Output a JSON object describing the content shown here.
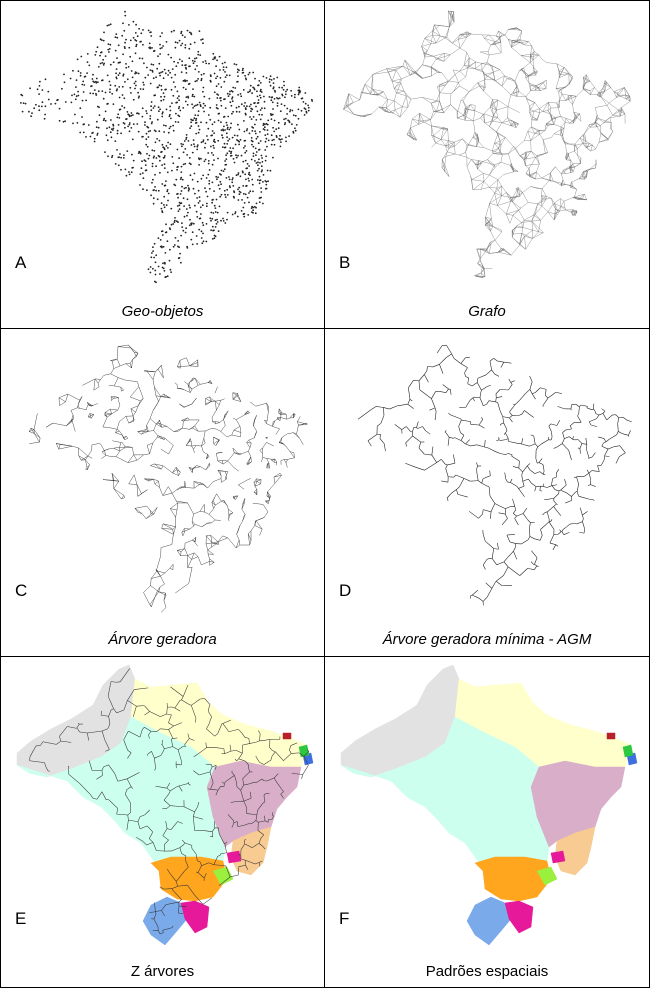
{
  "panels": [
    {
      "letter": "A",
      "caption": "Geo-objetos",
      "italic": true,
      "style": "points"
    },
    {
      "letter": "B",
      "caption": "Grafo",
      "italic": true,
      "style": "graph"
    },
    {
      "letter": "C",
      "caption": "Árvore geradora",
      "italic": true,
      "style": "spanning"
    },
    {
      "letter": "D",
      "caption": "Árvore geradora mínima - AGM",
      "italic": true,
      "style": "mst"
    },
    {
      "letter": "E",
      "caption": "Z árvores",
      "italic": false,
      "style": "regions-trees"
    },
    {
      "letter": "F",
      "caption": "Padrões espaciais",
      "italic": false,
      "style": "regions"
    }
  ],
  "colors": {
    "line": "#222222",
    "region_gray": "#e2e2e2",
    "region_yellow": "#ffffcc",
    "region_cyan": "#ccffee",
    "region_mauve": "#d9aec9",
    "region_orange": "#ffa51e",
    "region_blue": "#7aaaea",
    "region_magenta": "#e6199a",
    "region_peach": "#f7cb91",
    "region_green": "#9af03c"
  }
}
